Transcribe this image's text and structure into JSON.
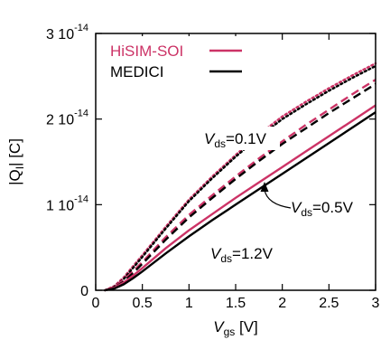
{
  "chart_data": {
    "type": "line",
    "xlabel": {
      "main": "V",
      "sub": "gs",
      "unit": " [V]"
    },
    "ylabel": "|Q",
    "ylabel_sub": "I",
    "ylabel_unit": "| [C]",
    "xlim": [
      0,
      3
    ],
    "ylim": [
      0,
      3e-14
    ],
    "x_ticks": [
      {
        "value": 0,
        "label": "0"
      },
      {
        "value": 0.5,
        "label": "0.5"
      },
      {
        "value": 1,
        "label": "1"
      },
      {
        "value": 1.5,
        "label": "1.5"
      },
      {
        "value": 2,
        "label": "2"
      },
      {
        "value": 2.5,
        "label": "2.5"
      },
      {
        "value": 3,
        "label": "3"
      }
    ],
    "y_ticks": [
      {
        "value": 0,
        "label": "0",
        "exp": ""
      },
      {
        "value": 1e-14,
        "label": "1 10",
        "exp": "-14"
      },
      {
        "value": 2e-14,
        "label": "2 10",
        "exp": "-14"
      },
      {
        "value": 3e-14,
        "label": "3 10",
        "exp": "-14"
      }
    ],
    "grid": false,
    "legend": {
      "placement": "top-left",
      "entries": [
        {
          "name": "HiSIM-SOI",
          "color": "#cc3366"
        },
        {
          "name": "MEDICI",
          "color": "#000000"
        }
      ]
    },
    "annotations": [
      {
        "main": "V",
        "sub": "ds",
        "text": "=0.1V",
        "series": "dotted"
      },
      {
        "main": "V",
        "sub": "ds",
        "text": "=0.5V",
        "series": "dashed"
      },
      {
        "main": "V",
        "sub": "ds",
        "text": "=1.2V",
        "series": "solid"
      }
    ],
    "series": [
      {
        "model": "HiSIM-SOI",
        "style": "dotted",
        "color": "#cc3366",
        "x": [
          0.1,
          0.2,
          0.3,
          0.4,
          0.5,
          0.75,
          1.0,
          1.25,
          1.5,
          1.75,
          2.0,
          2.25,
          2.5,
          2.75,
          3.0
        ],
        "y": [
          0,
          5e-16,
          1.5e-15,
          2.8e-15,
          4.1e-15,
          7.4e-15,
          1.06e-14,
          1.33e-14,
          1.58e-14,
          1.82e-14,
          2.03e-14,
          2.2e-14,
          2.36e-14,
          2.51e-14,
          2.65e-14
        ]
      },
      {
        "model": "MEDICI",
        "style": "dotted",
        "color": "#000000",
        "x": [
          0.1,
          0.2,
          0.3,
          0.4,
          0.5,
          0.75,
          1.0,
          1.25,
          1.5,
          1.75,
          2.0,
          2.25,
          2.5,
          2.75,
          3.0
        ],
        "y": [
          0,
          4e-16,
          1.3e-15,
          2.6e-15,
          3.9e-15,
          7.2e-15,
          1.04e-14,
          1.31e-14,
          1.56e-14,
          1.79e-14,
          2e-14,
          2.17e-14,
          2.33e-14,
          2.48e-14,
          2.62e-14
        ]
      },
      {
        "model": "HiSIM-SOI",
        "style": "dashed",
        "color": "#cc3366",
        "x": [
          0.1,
          0.2,
          0.3,
          0.4,
          0.5,
          0.75,
          1.0,
          1.25,
          1.5,
          1.75,
          2.0,
          2.25,
          2.5,
          2.75,
          3.0
        ],
        "y": [
          0,
          4e-16,
          1.2e-15,
          2.2e-15,
          3.3e-15,
          6.2e-15,
          8.8e-15,
          1.11e-14,
          1.33e-14,
          1.54e-14,
          1.74e-14,
          1.93e-14,
          2.11e-14,
          2.29e-14,
          2.46e-14
        ]
      },
      {
        "model": "MEDICI",
        "style": "dashed",
        "color": "#000000",
        "x": [
          0.1,
          0.2,
          0.3,
          0.4,
          0.5,
          0.75,
          1.0,
          1.25,
          1.5,
          1.75,
          2.0,
          2.25,
          2.5,
          2.75,
          3.0
        ],
        "y": [
          0,
          3e-16,
          1e-15,
          2e-15,
          3.1e-15,
          5.9e-15,
          8.5e-15,
          1.08e-14,
          1.3e-14,
          1.51e-14,
          1.71e-14,
          1.89e-14,
          2.07e-14,
          2.24e-14,
          2.41e-14
        ]
      },
      {
        "model": "HiSIM-SOI",
        "style": "solid",
        "color": "#cc3366",
        "x": [
          0.1,
          0.2,
          0.3,
          0.4,
          0.5,
          0.75,
          1.0,
          1.25,
          1.5,
          1.75,
          2.0,
          2.25,
          2.5,
          2.75,
          3.0
        ],
        "y": [
          0,
          3e-16,
          9e-16,
          1.7e-15,
          2.6e-15,
          4.9e-15,
          7e-15,
          8.9e-15,
          1.08e-14,
          1.26e-14,
          1.44e-14,
          1.62e-14,
          1.8e-14,
          1.98e-14,
          2.16e-14
        ]
      },
      {
        "model": "MEDICI",
        "style": "solid",
        "color": "#000000",
        "x": [
          0.1,
          0.2,
          0.3,
          0.4,
          0.5,
          0.75,
          1.0,
          1.25,
          1.5,
          1.75,
          2.0,
          2.25,
          2.5,
          2.75,
          3.0
        ],
        "y": [
          0,
          2e-16,
          7e-16,
          1.4e-15,
          2.2e-15,
          4.3e-15,
          6.3e-15,
          8.2e-15,
          1e-14,
          1.18e-14,
          1.36e-14,
          1.54e-14,
          1.72e-14,
          1.9e-14,
          2.08e-14
        ]
      }
    ]
  }
}
